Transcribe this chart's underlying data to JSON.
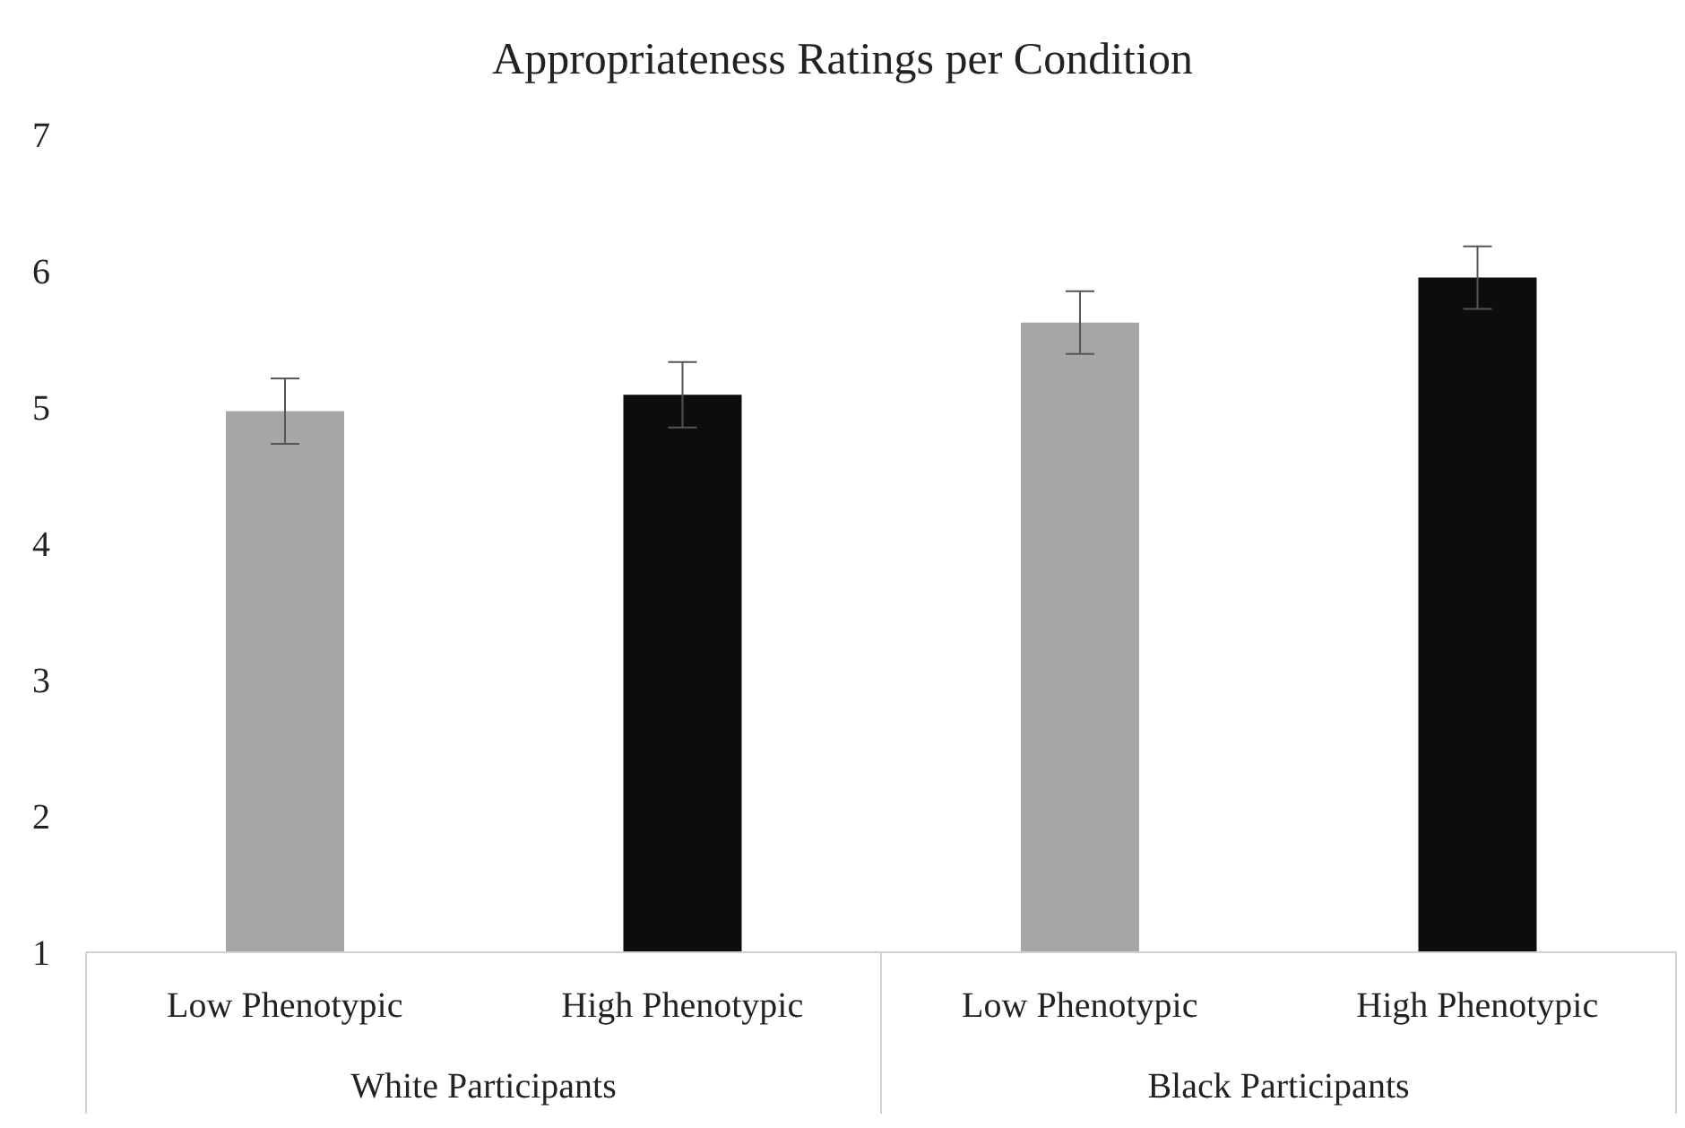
{
  "chart_data": {
    "type": "bar",
    "title": "Appropriateness Ratings per Condition",
    "categories": [
      "Low Phenotypic",
      "High Phenotypic",
      "Low Phenotypic",
      "High Phenotypic"
    ],
    "values": [
      4.97,
      5.09,
      5.62,
      5.95
    ],
    "errors": [
      0.24,
      0.24,
      0.23,
      0.23
    ],
    "colors": [
      "#a6a6a6",
      "#0d0d0d",
      "#a6a6a6",
      "#0d0d0d"
    ],
    "ylim": [
      1,
      7
    ],
    "yticks": [
      1,
      2,
      3,
      4,
      5,
      6,
      7
    ],
    "grid": false,
    "legend": false,
    "annotations": [
      "White Participants",
      "Black Participants"
    ]
  }
}
